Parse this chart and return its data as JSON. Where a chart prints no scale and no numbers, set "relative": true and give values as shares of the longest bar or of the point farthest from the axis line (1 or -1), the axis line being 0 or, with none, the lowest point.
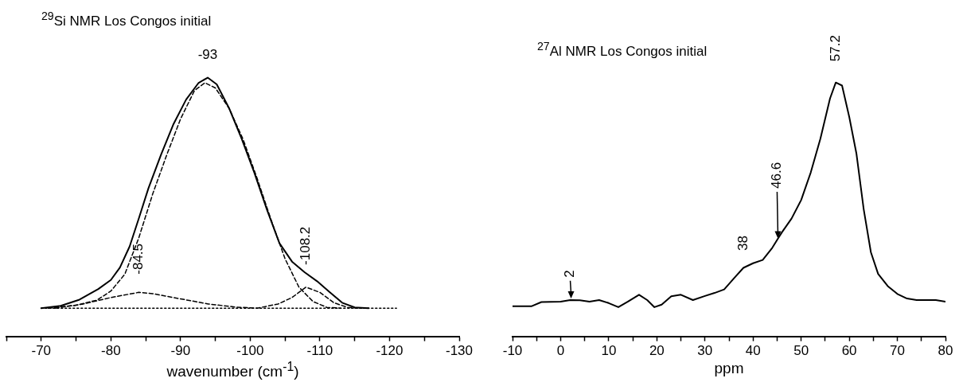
{
  "chart_data": [
    {
      "type": "line",
      "title": "$^{29}$Si NMR Los Congos initial",
      "xlabel": "wavenumber (cm$^{-1}$)",
      "relative": true,
      "grid": false,
      "legend": false,
      "xlim": [
        -65,
        -130
      ],
      "xticks": [
        {
          "value": -65,
          "label": null
        },
        -70,
        {
          "value": -75,
          "label": null
        },
        -80,
        {
          "value": -85,
          "label": null
        },
        -90,
        {
          "value": -95,
          "label": null
        },
        -100,
        {
          "value": -105,
          "label": null
        },
        -110,
        {
          "value": -115,
          "label": null
        },
        -120,
        {
          "value": -125,
          "label": null
        },
        -130
      ],
      "series": [
        {
          "color": "#000000",
          "line_style": "solid",
          "x": [
            -70,
            -72.8,
            -75.5,
            -78.2,
            -80,
            -81.3,
            -82.7,
            -84,
            -85.4,
            -87.2,
            -89,
            -90.8,
            -92.6,
            -93.9,
            -95.2,
            -97,
            -98.8,
            -100.6,
            -102.4,
            -104.2,
            -106,
            -107.8,
            -109.6,
            -111.4,
            -113.2,
            -115,
            -117
          ],
          "values": [
            0.109,
            0.118,
            0.142,
            0.183,
            0.218,
            0.266,
            0.348,
            0.455,
            0.573,
            0.702,
            0.821,
            0.915,
            0.98,
            1,
            0.974,
            0.88,
            0.762,
            0.632,
            0.49,
            0.36,
            0.289,
            0.248,
            0.213,
            0.171,
            0.13,
            0.112,
            0.109
          ]
        },
        {
          "color": "#000000",
          "line_style": "dashed",
          "x": [
            -71,
            -75,
            -78,
            -80,
            -82,
            -84,
            -86,
            -88,
            -90,
            -92,
            -93.5,
            -95,
            -97,
            -99,
            -101,
            -103,
            -105,
            -107,
            -109,
            -111,
            -113
          ],
          "values": [
            0.109,
            0.12,
            0.14,
            0.175,
            0.24,
            0.38,
            0.55,
            0.7,
            0.84,
            0.95,
            0.98,
            0.96,
            0.88,
            0.76,
            0.61,
            0.45,
            0.3,
            0.19,
            0.135,
            0.112,
            0.109
          ]
        },
        {
          "color": "#000000",
          "line_style": "dashed",
          "x": [
            -72,
            -76,
            -80,
            -84,
            -86,
            -90,
            -94,
            -98,
            -101,
            -104,
            -106,
            -108,
            -110,
            -112,
            -114,
            -116
          ],
          "values": [
            0.109,
            0.125,
            0.15,
            0.17,
            0.165,
            0.145,
            0.125,
            0.113,
            0.109,
            0.125,
            0.15,
            0.19,
            0.17,
            0.13,
            0.112,
            0.109
          ]
        },
        {
          "color": "#000000",
          "line_style": "dotted",
          "x": [
            -70,
            -121
          ],
          "values": [
            0.109,
            0.109
          ]
        }
      ],
      "annotations": [
        {
          "text": "-93",
          "x": -93.9,
          "y": 1
        },
        {
          "text": "-84.5",
          "x": -84,
          "y": 0.17
        },
        {
          "text": "-108.2",
          "x": -108,
          "y": 0.19
        }
      ]
    },
    {
      "type": "line",
      "title": "$^{27}$Al NMR Los Congos initial",
      "xlabel": "ppm",
      "relative": true,
      "grid": false,
      "legend": false,
      "xlim": [
        -10,
        80
      ],
      "xticks": [
        -10,
        {
          "value": -5,
          "label": null
        },
        0,
        {
          "value": 5,
          "label": null
        },
        10,
        {
          "value": 15,
          "label": null
        },
        20,
        {
          "value": 25,
          "label": null
        },
        30,
        {
          "value": 35,
          "label": null
        },
        40,
        {
          "value": 45,
          "label": null
        },
        50,
        {
          "value": 55,
          "label": null
        },
        60,
        {
          "value": 65,
          "label": null
        },
        70,
        {
          "value": 75,
          "label": null
        },
        80
      ],
      "series": [
        {
          "color": "#000000",
          "line_style": "solid",
          "x": [
            -10,
            -6,
            -4,
            0,
            2,
            4,
            6,
            8,
            10,
            12,
            14,
            16.3,
            18,
            19.5,
            21,
            23,
            25,
            27.5,
            30,
            32,
            34,
            36,
            38,
            40,
            42,
            44,
            45,
            46,
            48,
            50,
            52,
            54,
            56,
            57.2,
            58.5,
            60,
            61.5,
            63,
            64.5,
            66,
            68,
            70,
            72,
            74,
            78,
            80
          ],
          "values": [
            0.119,
            0.119,
            0.135,
            0.137,
            0.143,
            0.142,
            0.137,
            0.143,
            0.131,
            0.115,
            0.137,
            0.164,
            0.143,
            0.115,
            0.125,
            0.158,
            0.164,
            0.143,
            0.159,
            0.171,
            0.185,
            0.228,
            0.27,
            0.288,
            0.301,
            0.349,
            0.38,
            0.41,
            0.464,
            0.537,
            0.646,
            0.779,
            0.937,
            1,
            0.988,
            0.864,
            0.719,
            0.501,
            0.331,
            0.246,
            0.198,
            0.167,
            0.149,
            0.143,
            0.143,
            0.137
          ]
        }
      ],
      "annotations": [
        {
          "text": "2",
          "x": 2,
          "y": 0.143
        },
        {
          "text": "38",
          "x": 38,
          "y": 0.27
        },
        {
          "text": "46.6",
          "x": 45,
          "y": 0.38
        },
        {
          "text": "57.2",
          "x": 57.2,
          "y": 1
        }
      ]
    }
  ]
}
